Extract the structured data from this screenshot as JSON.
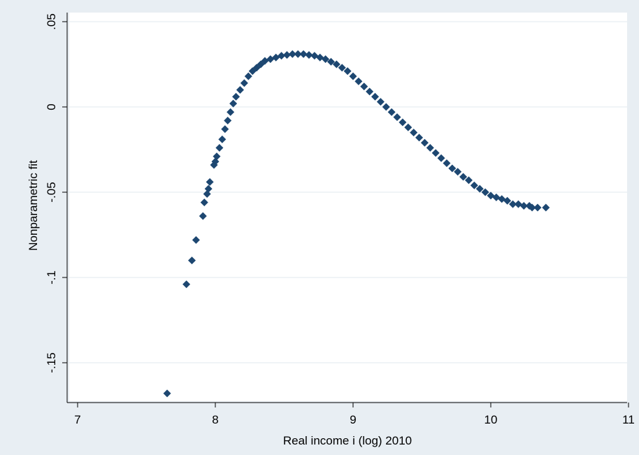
{
  "chart_data": {
    "type": "scatter",
    "title": "",
    "xlabel": "Real income i (log) 2010",
    "ylabel": "Nonparametric fit",
    "xlim": [
      7,
      11
    ],
    "ylim": [
      -0.17,
      0.05
    ],
    "x_ticks": [
      7,
      8,
      9,
      10,
      11
    ],
    "x_tick_labels": [
      "7",
      "8",
      "9",
      "10",
      "11"
    ],
    "y_ticks": [
      0.05,
      0,
      -0.05,
      -0.1,
      -0.15
    ],
    "y_tick_labels": [
      ".05",
      "0",
      "-.05",
      "-.1",
      "-.15"
    ],
    "grid": "horizontal",
    "legend": "none",
    "colors": {
      "outer_background": "#e8eef3",
      "plot_background": "#ffffff",
      "gridline": "#e6edf2",
      "marker": "#1d4771",
      "axis": "#000000"
    },
    "series": [
      {
        "marker": "diamond",
        "points": [
          [
            7.65,
            -0.168
          ],
          [
            7.79,
            -0.104
          ],
          [
            7.83,
            -0.09
          ],
          [
            7.86,
            -0.078
          ],
          [
            7.91,
            -0.064
          ],
          [
            7.92,
            -0.056
          ],
          [
            7.94,
            -0.051
          ],
          [
            7.95,
            -0.048
          ],
          [
            7.96,
            -0.044
          ],
          [
            7.99,
            -0.034
          ],
          [
            8.0,
            -0.032
          ],
          [
            8.01,
            -0.029
          ],
          [
            8.03,
            -0.024
          ],
          [
            8.05,
            -0.019
          ],
          [
            8.07,
            -0.013
          ],
          [
            8.09,
            -0.008
          ],
          [
            8.11,
            -0.003
          ],
          [
            8.13,
            0.002
          ],
          [
            8.15,
            0.006
          ],
          [
            8.18,
            0.01
          ],
          [
            8.21,
            0.014
          ],
          [
            8.24,
            0.018
          ],
          [
            8.27,
            0.021
          ],
          [
            8.3,
            0.023
          ],
          [
            8.33,
            0.025
          ],
          [
            8.36,
            0.027
          ],
          [
            8.4,
            0.028
          ],
          [
            8.44,
            0.029
          ],
          [
            8.48,
            0.03
          ],
          [
            8.52,
            0.0305
          ],
          [
            8.56,
            0.031
          ],
          [
            8.6,
            0.031
          ],
          [
            8.64,
            0.031
          ],
          [
            8.68,
            0.0305
          ],
          [
            8.72,
            0.03
          ],
          [
            8.76,
            0.029
          ],
          [
            8.8,
            0.028
          ],
          [
            8.84,
            0.0265
          ],
          [
            8.88,
            0.025
          ],
          [
            8.92,
            0.023
          ],
          [
            8.96,
            0.021
          ],
          [
            9.0,
            0.018
          ],
          [
            9.04,
            0.015
          ],
          [
            9.08,
            0.012
          ],
          [
            9.12,
            0.009
          ],
          [
            9.16,
            0.006
          ],
          [
            9.2,
            0.003
          ],
          [
            9.24,
            0.0
          ],
          [
            9.28,
            -0.003
          ],
          [
            9.32,
            -0.006
          ],
          [
            9.36,
            -0.009
          ],
          [
            9.4,
            -0.012
          ],
          [
            9.44,
            -0.015
          ],
          [
            9.48,
            -0.018
          ],
          [
            9.52,
            -0.021
          ],
          [
            9.56,
            -0.024
          ],
          [
            9.6,
            -0.027
          ],
          [
            9.64,
            -0.03
          ],
          [
            9.68,
            -0.033
          ],
          [
            9.72,
            -0.036
          ],
          [
            9.76,
            -0.038
          ],
          [
            9.8,
            -0.041
          ],
          [
            9.84,
            -0.043
          ],
          [
            9.88,
            -0.046
          ],
          [
            9.92,
            -0.048
          ],
          [
            9.96,
            -0.05
          ],
          [
            10.0,
            -0.052
          ],
          [
            10.04,
            -0.053
          ],
          [
            10.08,
            -0.054
          ],
          [
            10.12,
            -0.055
          ],
          [
            10.16,
            -0.057
          ],
          [
            10.2,
            -0.057
          ],
          [
            10.24,
            -0.058
          ],
          [
            10.28,
            -0.058
          ],
          [
            10.3,
            -0.059
          ],
          [
            10.34,
            -0.059
          ],
          [
            10.4,
            -0.059
          ]
        ]
      }
    ]
  }
}
